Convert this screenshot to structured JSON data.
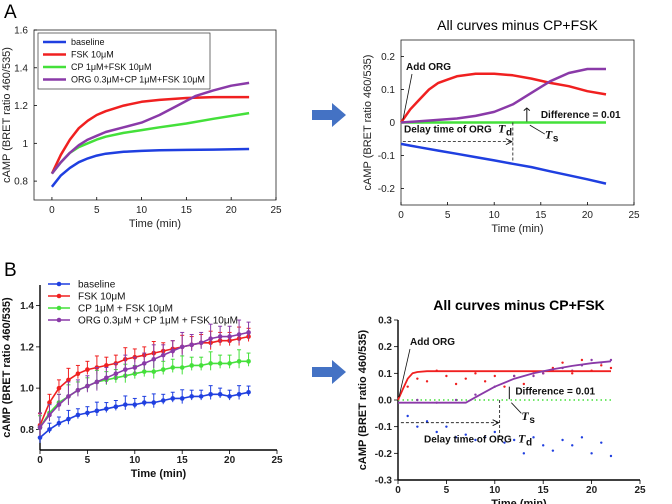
{
  "colors": {
    "blue": "#1f3fe0",
    "red": "#f02020",
    "green": "#44e03a",
    "purple": "#8a3aa8",
    "arrow": "#4472c4"
  },
  "labels": {
    "panel_a": "A",
    "panel_b": "B"
  },
  "chart_data": [
    {
      "id": "A1",
      "type": "line",
      "title": "",
      "xlabel": "Time (min)",
      "ylabel": "cAMP (BRET ratio 460/535)",
      "xlim": [
        -2,
        25
      ],
      "ylim": [
        0.7,
        1.6
      ],
      "xticks": [
        0,
        5,
        10,
        15,
        20,
        25
      ],
      "xtick_labels": [
        "0",
        "5",
        "10",
        "15",
        "20",
        "25"
      ],
      "yticks": [
        0.8,
        1,
        1.2,
        1.4,
        1.6
      ],
      "ytick_labels": [
        "0.8",
        "1",
        "1.2",
        "1.4",
        "1.6"
      ],
      "legend": [
        "baseline",
        "FSK 10μM",
        "CP 1μM+FSK 10μM",
        "ORG 0.3μM+CP 1μM+FSK 10μM"
      ],
      "series": [
        {
          "name": "baseline",
          "color": "blue",
          "x": [
            0,
            1,
            2,
            3,
            4,
            5,
            6,
            8,
            10,
            12,
            15,
            18,
            22
          ],
          "y": [
            0.77,
            0.83,
            0.87,
            0.9,
            0.92,
            0.935,
            0.945,
            0.955,
            0.96,
            0.963,
            0.965,
            0.967,
            0.97
          ]
        },
        {
          "name": "FSK 10μM",
          "color": "red",
          "x": [
            0,
            1,
            2,
            3,
            4,
            5,
            6,
            8,
            10,
            12,
            15,
            18,
            22
          ],
          "y": [
            0.84,
            0.94,
            1.02,
            1.08,
            1.12,
            1.15,
            1.17,
            1.2,
            1.22,
            1.23,
            1.24,
            1.245,
            1.245
          ]
        },
        {
          "name": "CP 1μM+FSK 10μM",
          "color": "green",
          "x": [
            0,
            1,
            2,
            3,
            4,
            5,
            6,
            8,
            10,
            12,
            15,
            18,
            22
          ],
          "y": [
            0.84,
            0.9,
            0.95,
            0.98,
            1.0,
            1.02,
            1.035,
            1.055,
            1.07,
            1.085,
            1.105,
            1.13,
            1.16
          ]
        },
        {
          "name": "ORG 0.3μM+CP 1μM+FSK 10μM",
          "color": "purple",
          "x": [
            0,
            1,
            2,
            3,
            4,
            5,
            6,
            8,
            10,
            12,
            14,
            16,
            18,
            20,
            22
          ],
          "y": [
            0.84,
            0.9,
            0.95,
            0.99,
            1.02,
            1.04,
            1.06,
            1.085,
            1.11,
            1.15,
            1.2,
            1.25,
            1.28,
            1.305,
            1.32
          ]
        }
      ]
    },
    {
      "id": "A2",
      "type": "line",
      "title": "All curves minus CP+FSK",
      "xlabel": "Time (min)",
      "ylabel": "cAMP (BRET ratio 460/535)",
      "xlim": [
        0,
        25
      ],
      "ylim": [
        -0.25,
        0.25
      ],
      "xticks": [
        0,
        5,
        10,
        15,
        20,
        25
      ],
      "xtick_labels": [
        "0",
        "5",
        "10",
        "15",
        "20",
        "25"
      ],
      "yticks": [
        -0.2,
        -0.1,
        0,
        0.1,
        0.2
      ],
      "ytick_labels": [
        "-0.2",
        "-0.1",
        "0",
        "0.1",
        "0.2"
      ],
      "annotations": {
        "add": "Add ORG",
        "diff": "Difference = 0.01",
        "delay": "Delay time of ORG",
        "td": "T",
        "td_sub": "d",
        "ts": "T",
        "ts_sub": "s"
      },
      "marks": {
        "td_x": 12,
        "ts_x": 13.5
      },
      "series": [
        {
          "name": "FSK 10μM",
          "color": "red",
          "x": [
            0,
            1,
            2,
            3,
            4,
            5,
            6,
            8,
            10,
            12,
            14,
            16,
            18,
            20,
            22
          ],
          "y": [
            0,
            0.04,
            0.07,
            0.1,
            0.12,
            0.13,
            0.14,
            0.148,
            0.148,
            0.143,
            0.133,
            0.12,
            0.11,
            0.095,
            0.085
          ]
        },
        {
          "name": "CP 1μM+FSK 10μM",
          "color": "green",
          "x": [
            0,
            22
          ],
          "y": [
            0,
            0
          ]
        },
        {
          "name": "ORG 0.3μM+CP 1μM+FSK 10μM",
          "color": "purple",
          "x": [
            0,
            2,
            4,
            6,
            8,
            10,
            12,
            14,
            16,
            18,
            20,
            22
          ],
          "y": [
            0.0,
            0.004,
            0.008,
            0.012,
            0.02,
            0.032,
            0.055,
            0.09,
            0.125,
            0.15,
            0.162,
            0.162
          ]
        },
        {
          "name": "baseline",
          "color": "blue",
          "x": [
            0,
            1,
            2,
            4,
            6,
            8,
            10,
            12,
            14,
            16,
            18,
            20,
            22
          ],
          "y": [
            -0.065,
            -0.07,
            -0.075,
            -0.085,
            -0.095,
            -0.105,
            -0.115,
            -0.125,
            -0.135,
            -0.148,
            -0.16,
            -0.172,
            -0.185
          ]
        }
      ]
    },
    {
      "id": "B1",
      "type": "line",
      "title": "",
      "xlabel": "Time (min)",
      "ylabel": "cAMP (BRET ratio 460/535)",
      "xlim": [
        0,
        25
      ],
      "ylim": [
        0.7,
        1.5
      ],
      "xticks": [
        0,
        5,
        10,
        15,
        20,
        25
      ],
      "xtick_labels": [
        "0",
        "5",
        "10",
        "15",
        "20",
        "25"
      ],
      "yticks": [
        0.8,
        1.0,
        1.2,
        1.4
      ],
      "ytick_labels": [
        "0.8",
        "1.0",
        "1.2",
        "1.4"
      ],
      "legend": [
        "baseline",
        "FSK 10μM",
        "CP 1μM + FSK 10μM",
        "ORG 0.3μM + CP 1μM + FSK 10μM"
      ],
      "series": [
        {
          "name": "baseline",
          "color": "blue",
          "x": [
            0,
            1,
            2,
            3,
            4,
            5,
            6,
            7,
            8,
            9,
            10,
            11,
            12,
            13,
            14,
            15,
            16,
            17,
            18,
            19,
            20,
            21,
            22
          ],
          "y": [
            0.76,
            0.8,
            0.83,
            0.85,
            0.87,
            0.88,
            0.89,
            0.9,
            0.91,
            0.92,
            0.92,
            0.93,
            0.93,
            0.94,
            0.95,
            0.95,
            0.96,
            0.96,
            0.97,
            0.97,
            0.96,
            0.97,
            0.98
          ],
          "err": 0.03
        },
        {
          "name": "FSK 10μM",
          "color": "red",
          "x": [
            0,
            1,
            2,
            3,
            4,
            5,
            6,
            7,
            8,
            9,
            10,
            11,
            12,
            13,
            14,
            15,
            16,
            17,
            18,
            19,
            20,
            21,
            22
          ],
          "y": [
            0.82,
            0.93,
            1.0,
            1.04,
            1.07,
            1.09,
            1.1,
            1.11,
            1.12,
            1.14,
            1.15,
            1.16,
            1.17,
            1.18,
            1.19,
            1.2,
            1.21,
            1.22,
            1.22,
            1.23,
            1.23,
            1.24,
            1.25
          ],
          "err": 0.04
        },
        {
          "name": "CP 1μM + FSK 10μM",
          "color": "green",
          "x": [
            0,
            1,
            2,
            3,
            4,
            5,
            6,
            7,
            8,
            9,
            10,
            11,
            12,
            13,
            14,
            15,
            16,
            17,
            18,
            19,
            20,
            21,
            22
          ],
          "y": [
            0.81,
            0.88,
            0.93,
            0.96,
            0.99,
            1.01,
            1.03,
            1.04,
            1.05,
            1.06,
            1.07,
            1.08,
            1.08,
            1.09,
            1.1,
            1.1,
            1.11,
            1.11,
            1.12,
            1.12,
            1.12,
            1.13,
            1.13
          ],
          "err": 0.04
        },
        {
          "name": "ORG 0.3μM + CP 1μM + FSK 10μM",
          "color": "purple",
          "x": [
            0,
            1,
            2,
            3,
            4,
            5,
            6,
            7,
            8,
            9,
            10,
            11,
            12,
            13,
            14,
            15,
            16,
            17,
            18,
            19,
            20,
            21,
            22
          ],
          "y": [
            0.81,
            0.87,
            0.92,
            0.96,
            0.99,
            1.01,
            1.03,
            1.05,
            1.07,
            1.09,
            1.1,
            1.12,
            1.14,
            1.16,
            1.18,
            1.2,
            1.21,
            1.22,
            1.24,
            1.25,
            1.25,
            1.26,
            1.27
          ],
          "err": 0.05
        }
      ]
    },
    {
      "id": "B2",
      "type": "line",
      "title": "All curves minus CP+FSK",
      "xlabel": "Time (min)",
      "ylabel": "cAMP (BRET ratio 460/535)",
      "xlim": [
        0,
        25
      ],
      "ylim": [
        -0.3,
        0.3
      ],
      "xticks": [
        0,
        5,
        10,
        15,
        20,
        25
      ],
      "xtick_labels": [
        "0",
        "5",
        "10",
        "15",
        "20",
        "25"
      ],
      "yticks": [
        -0.3,
        -0.2,
        -0.1,
        0.0,
        0.1,
        0.2,
        0.3
      ],
      "ytick_labels": [
        "-0.3",
        "-0.2",
        "-0.1",
        "0.0",
        "0.1",
        "0.2",
        "0.3"
      ],
      "annotations": {
        "add": "Add ORG",
        "diff": "Difference = 0.01",
        "delay": "Delay time of ORG",
        "td": "T",
        "td_sub": "d",
        "ts": "T",
        "ts_sub": "s"
      },
      "marks": {
        "td_x": 10.5,
        "ts_x": 11.5
      },
      "fits": [
        {
          "name": "FSK 10μM fit",
          "color": "red",
          "x": [
            0,
            0.5,
            1,
            1.5,
            2,
            3,
            5,
            10,
            15,
            20,
            22
          ],
          "y": [
            0,
            0.04,
            0.08,
            0.1,
            0.105,
            0.108,
            0.108,
            0.108,
            0.108,
            0.108,
            0.108
          ]
        },
        {
          "name": "ORG fit",
          "color": "purple",
          "x": [
            0,
            7,
            8,
            10,
            12,
            14,
            16,
            18,
            20,
            22
          ],
          "y": [
            -0.01,
            -0.01,
            0.01,
            0.05,
            0.08,
            0.1,
            0.115,
            0.128,
            0.138,
            0.145
          ]
        }
      ],
      "series": [
        {
          "name": "FSK 10μM",
          "color": "red",
          "x": [
            1,
            2,
            3,
            4,
            5,
            6,
            7,
            8,
            9,
            10,
            11,
            12,
            13,
            14,
            15,
            16,
            17,
            18,
            19,
            20,
            21,
            22
          ],
          "y": [
            0.05,
            0.08,
            0.07,
            0.11,
            0.09,
            0.06,
            0.08,
            0.1,
            0.07,
            0.09,
            0.05,
            0.09,
            0.06,
            0.1,
            0.1,
            0.12,
            0.14,
            0.1,
            0.15,
            0.11,
            0.13,
            0.12
          ]
        },
        {
          "name": "CP 1μM + FSK 10μM",
          "color": "green",
          "x": [
            0,
            22
          ],
          "y": [
            0,
            0
          ]
        },
        {
          "name": "ORG 0.3μM + CP 1μM + FSK 10μM",
          "color": "purple",
          "x": [
            2,
            4,
            6,
            8,
            10,
            12,
            14,
            15,
            16,
            17,
            18,
            19,
            20,
            21,
            22
          ],
          "y": [
            0.0,
            -0.01,
            0.0,
            0.02,
            0.05,
            0.09,
            0.09,
            0.1,
            0.11,
            0.12,
            0.11,
            0.13,
            0.15,
            0.14,
            0.15
          ]
        },
        {
          "name": "baseline",
          "color": "blue",
          "x": [
            1,
            2,
            3,
            4,
            5,
            6,
            7,
            8,
            9,
            10,
            11,
            12,
            13,
            14,
            15,
            16,
            17,
            18,
            19,
            20,
            21,
            22
          ],
          "y": [
            -0.06,
            -0.1,
            -0.08,
            -0.12,
            -0.1,
            -0.14,
            -0.13,
            -0.15,
            -0.14,
            -0.12,
            -0.16,
            -0.15,
            -0.2,
            -0.14,
            -0.17,
            -0.19,
            -0.15,
            -0.17,
            -0.14,
            -0.2,
            -0.16,
            -0.21
          ]
        }
      ]
    }
  ]
}
